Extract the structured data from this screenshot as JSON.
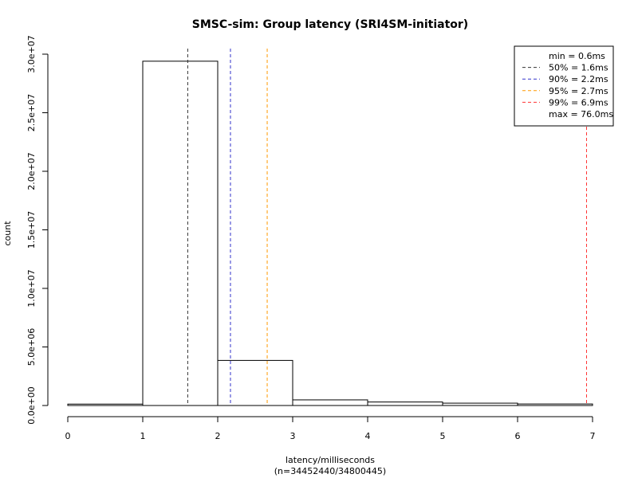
{
  "chart_data": {
    "type": "bar",
    "title": "SMSC-sim: Group latency (SRI4SM-initiator)",
    "xlabel": "latency/milliseconds",
    "xsublabel": "(n=34452440/34800445)",
    "ylabel": "count",
    "xlim": [
      0,
      7
    ],
    "ylim": [
      0,
      30000000
    ],
    "xticks": [
      0,
      1,
      2,
      3,
      4,
      5,
      6,
      7
    ],
    "yticks": [
      {
        "value": 0,
        "label": "0.0e+00"
      },
      {
        "value": 5000000,
        "label": "5.0e+06"
      },
      {
        "value": 10000000,
        "label": "1.0e+07"
      },
      {
        "value": 15000000,
        "label": "1.5e+07"
      },
      {
        "value": 20000000,
        "label": "2.0e+07"
      },
      {
        "value": 25000000,
        "label": "2.5e+07"
      },
      {
        "value": 30000000,
        "label": "3.0e+07"
      }
    ],
    "bins": [
      {
        "from": 0,
        "to": 1,
        "count": 120000
      },
      {
        "from": 1,
        "to": 2,
        "count": 29400000
      },
      {
        "from": 2,
        "to": 3,
        "count": 3850000
      },
      {
        "from": 3,
        "to": 4,
        "count": 480000
      },
      {
        "from": 4,
        "to": 5,
        "count": 300000
      },
      {
        "from": 5,
        "to": 6,
        "count": 200000
      },
      {
        "from": 6,
        "to": 7,
        "count": 130000
      }
    ],
    "reference_lines": [
      {
        "label": "50% = 1.6ms",
        "value": 1.6,
        "color": "#333333"
      },
      {
        "label": "90% = 2.2ms",
        "value": 2.17,
        "color": "#3333cc"
      },
      {
        "label": "95% = 2.7ms",
        "value": 2.66,
        "color": "#ff9900"
      },
      {
        "label": "99% = 6.9ms",
        "value": 6.92,
        "color": "#ff3333"
      }
    ],
    "legend": {
      "position": "top-right",
      "entries": [
        {
          "label": "min = 0.6ms",
          "color": null
        },
        {
          "label": "50% = 1.6ms",
          "color": "#333333"
        },
        {
          "label": "90% = 2.2ms",
          "color": "#3333cc"
        },
        {
          "label": "95% = 2.7ms",
          "color": "#ff9900"
        },
        {
          "label": "99% = 6.9ms",
          "color": "#ff3333"
        },
        {
          "label": "max = 76.0ms",
          "color": null
        }
      ]
    }
  }
}
